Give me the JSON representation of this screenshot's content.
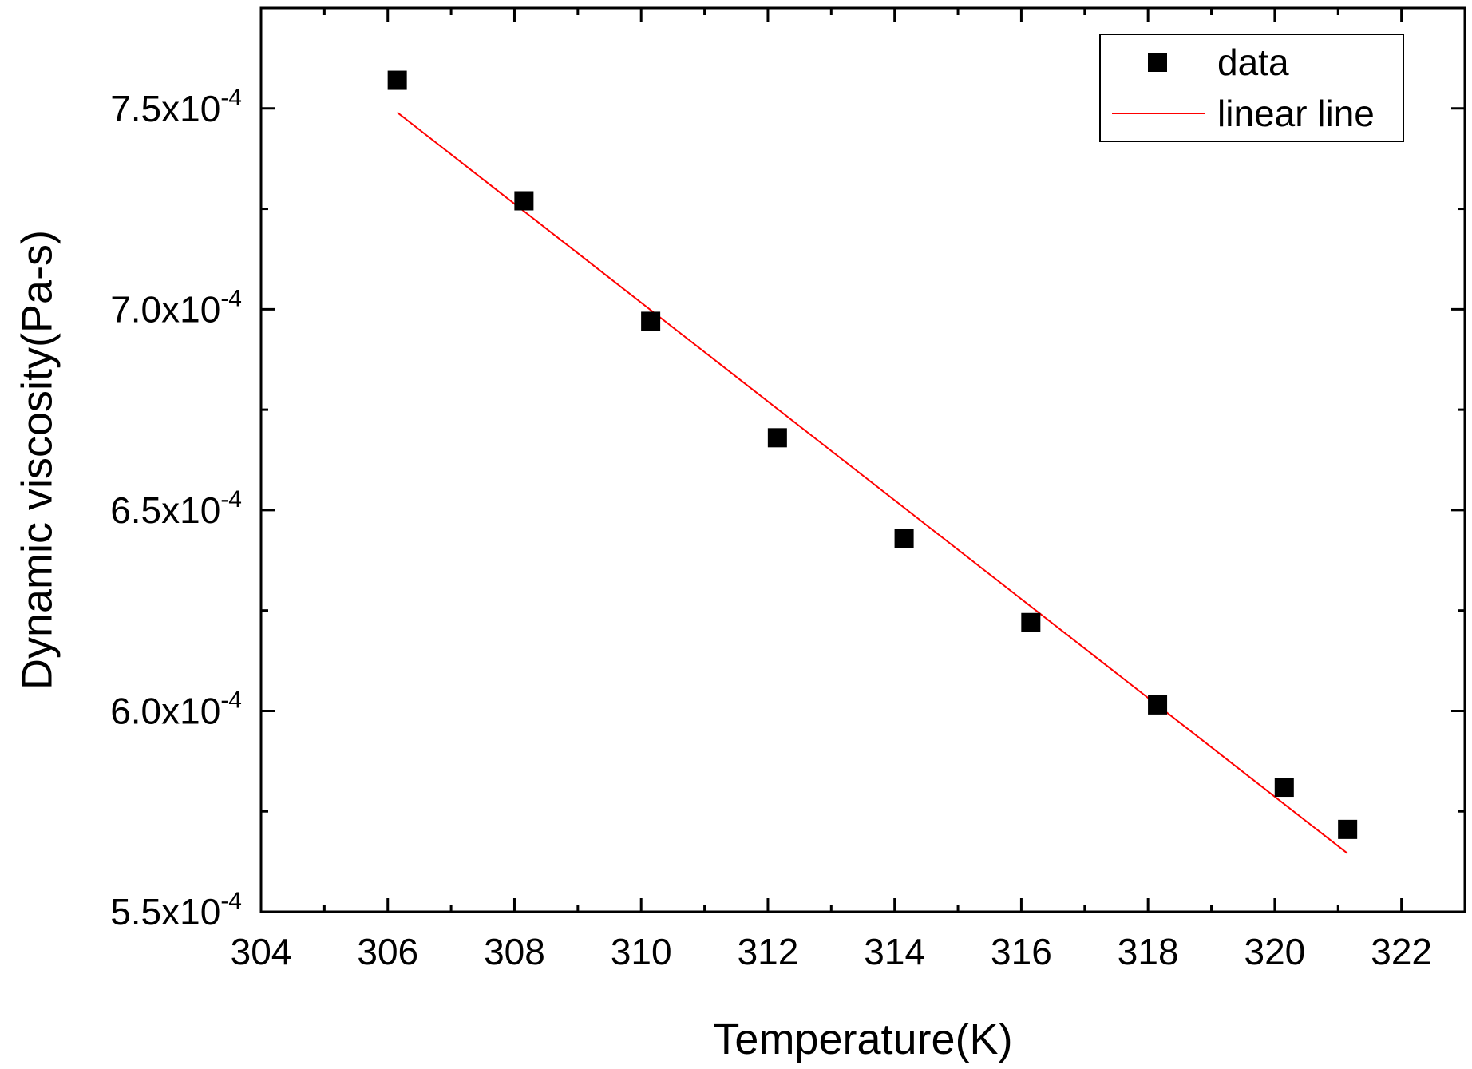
{
  "chart_data": {
    "type": "scatter",
    "title": "",
    "xlabel": "Temperature(K)",
    "ylabel": "Dynamic viscosity(Pa-s)",
    "xlim": [
      304,
      323
    ],
    "ylim": [
      0.00055,
      0.000775
    ],
    "x_ticks": [
      304,
      306,
      308,
      310,
      312,
      314,
      316,
      318,
      320,
      322
    ],
    "x_tick_labels": [
      "304",
      "306",
      "308",
      "310",
      "312",
      "314",
      "316",
      "318",
      "320",
      "322"
    ],
    "y_ticks": [
      0.00055,
      0.0006,
      0.00065,
      0.0007,
      0.00075
    ],
    "y_tick_labels": [
      {
        "mantissa": "5.5x10",
        "exponent": "-4"
      },
      {
        "mantissa": "6.0x10",
        "exponent": "-4"
      },
      {
        "mantissa": "6.5x10",
        "exponent": "-4"
      },
      {
        "mantissa": "7.0x10",
        "exponent": "-4"
      },
      {
        "mantissa": "7.5x10",
        "exponent": "-4"
      }
    ],
    "series": [
      {
        "name": "data",
        "kind": "scatter",
        "marker": "square",
        "color": "#000000",
        "x": [
          306.15,
          308.15,
          310.15,
          312.15,
          314.15,
          316.15,
          318.15,
          320.15,
          321.15
        ],
        "y": [
          0.000757,
          0.000727,
          0.000697,
          0.000668,
          0.000643,
          0.000622,
          0.0006015,
          0.000581,
          0.0005705
        ]
      },
      {
        "name": "linear line",
        "kind": "line",
        "color": "#ff0000",
        "x": [
          306.15,
          321.15
        ],
        "y": [
          0.000749,
          0.0005645
        ]
      }
    ],
    "legend": {
      "position": "top-right",
      "entries": [
        "data",
        "linear line"
      ]
    },
    "grid": false
  }
}
